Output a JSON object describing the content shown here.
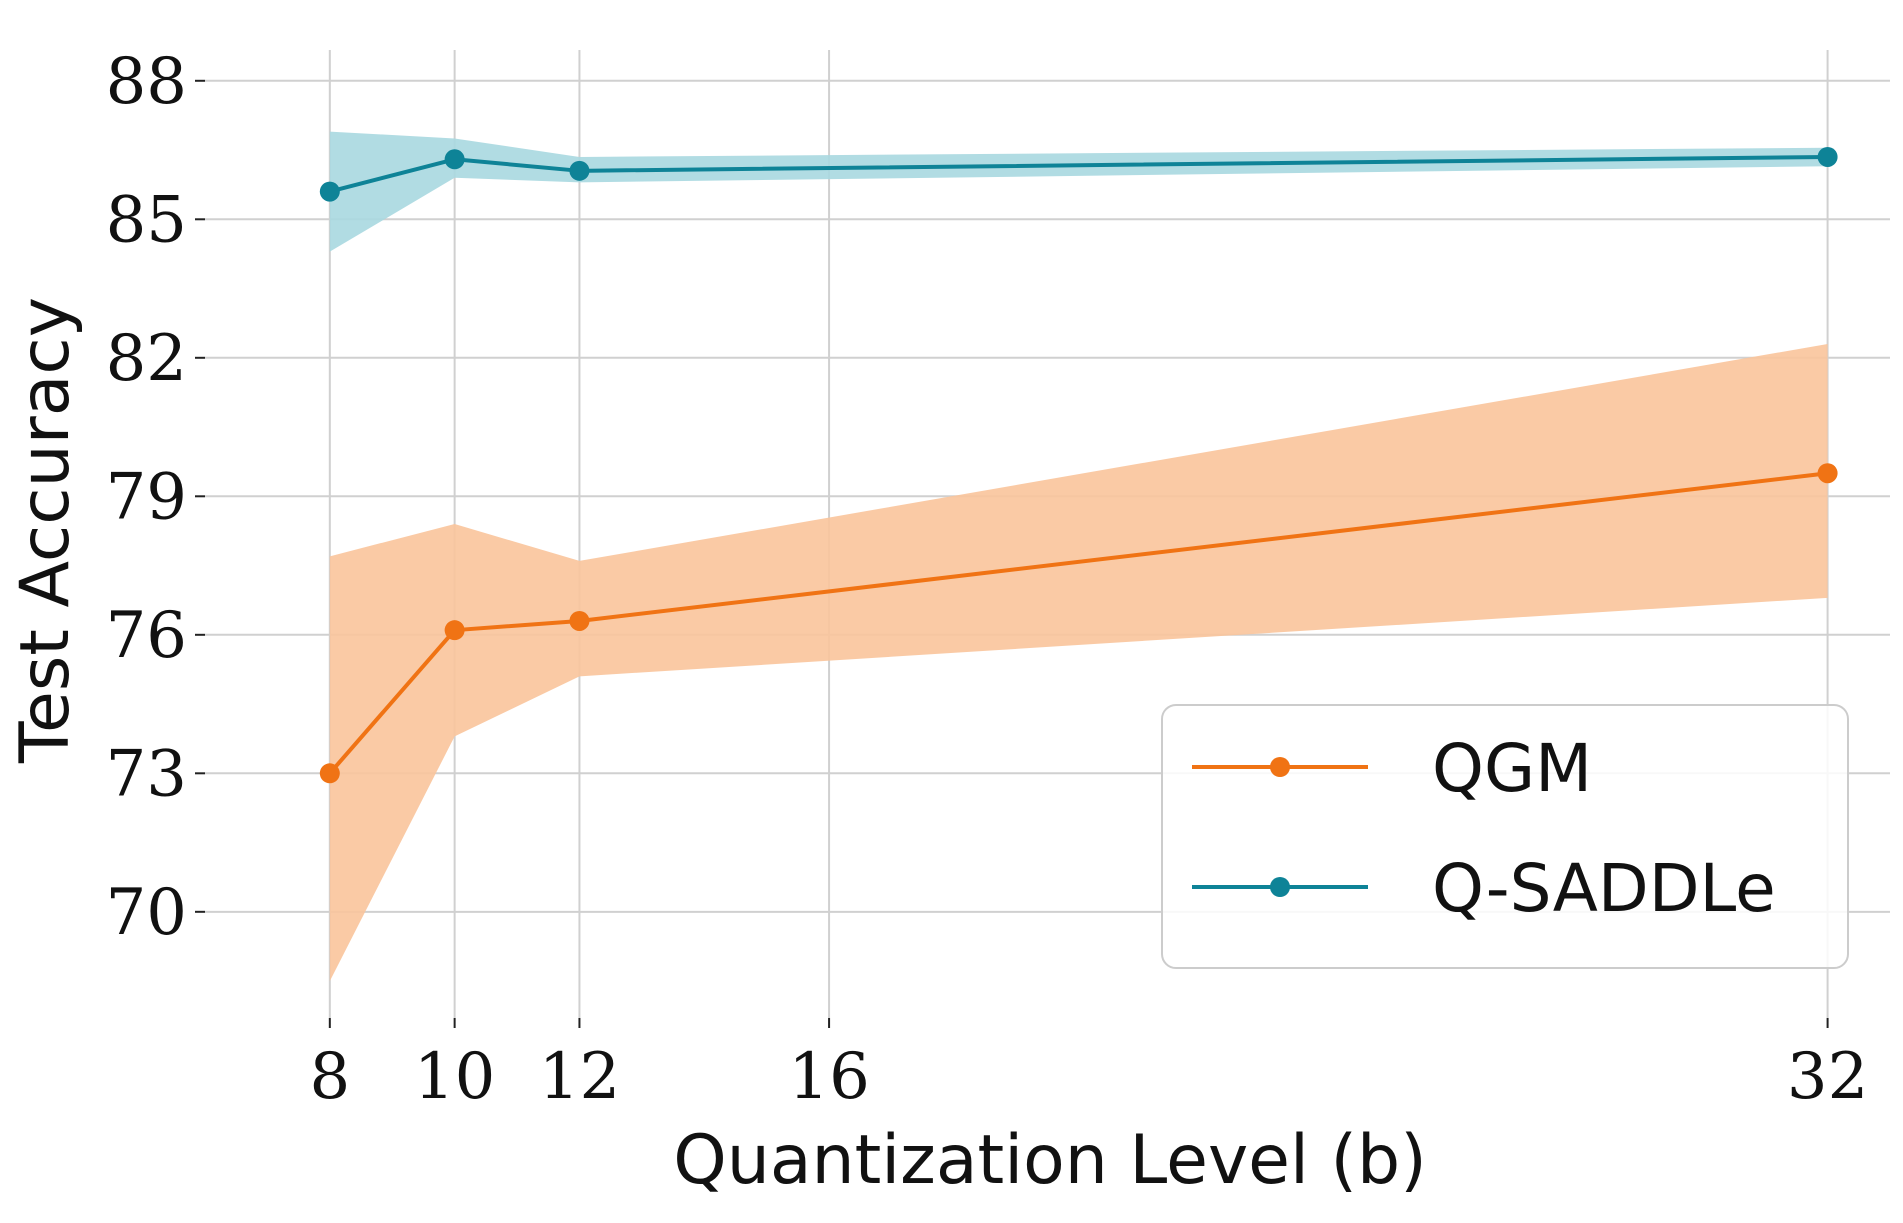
{
  "chart_data": {
    "type": "line",
    "title": "",
    "xlabel": "Quantization Level (b)",
    "ylabel": "Test Accuracy",
    "x": [
      8,
      10,
      12,
      32
    ],
    "x_ticks": [
      8,
      10,
      12,
      16,
      32
    ],
    "x_tick_labels": [
      "8",
      "10",
      "12",
      "16",
      "32"
    ],
    "xlim": [
      6,
      33
    ],
    "y_ticks": [
      70,
      73,
      76,
      79,
      82,
      85,
      88
    ],
    "y_tick_labels": [
      "70",
      "73",
      "76",
      "79",
      "82",
      "85",
      "88"
    ],
    "ylim": [
      67.7,
      89.1
    ],
    "grid": true,
    "legend_position": "lower-right",
    "series": [
      {
        "name": "QGM",
        "color": "#f07314",
        "band_color": "#f9c49b",
        "values": [
          73.0,
          76.1,
          76.3,
          79.5
        ],
        "lower": [
          68.5,
          73.8,
          75.1,
          76.8
        ],
        "upper": [
          77.7,
          78.4,
          77.6,
          82.3
        ]
      },
      {
        "name": "Q-SADDLe",
        "color": "#0e8397",
        "band_color": "#a9d8e0",
        "values": [
          85.6,
          86.3,
          86.05,
          86.35
        ],
        "lower": [
          84.3,
          85.9,
          85.8,
          86.15
        ],
        "upper": [
          86.9,
          86.75,
          86.35,
          86.55
        ]
      }
    ]
  }
}
